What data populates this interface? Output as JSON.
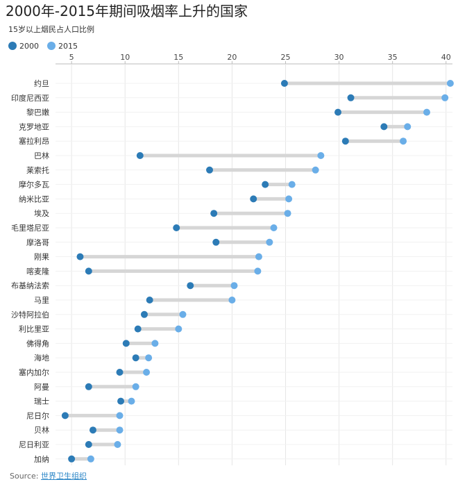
{
  "chart_data": {
    "type": "dumbbell",
    "title": "2000年-2015年期间吸烟率上升的国家",
    "subtitle": "15岁以上烟民占人口比例",
    "xlim": [
      3.5,
      40.6
    ],
    "x_ticks": [
      5,
      10,
      15,
      20,
      25,
      30,
      35,
      40
    ],
    "grid": true,
    "legend_position": "top-left",
    "series": [
      {
        "name": "2000",
        "color": "#2c7bb6"
      },
      {
        "name": "2015",
        "color": "#6aaee8"
      }
    ],
    "categories": [
      "约旦",
      "印度尼西亚",
      "黎巴嫩",
      "克罗地亚",
      "塞拉利昂",
      "巴林",
      "莱索托",
      "摩尔多瓦",
      "纳米比亚",
      "埃及",
      "毛里塔尼亚",
      "摩洛哥",
      "刚果",
      "喀麦隆",
      "布基纳法索",
      "马里",
      "沙特阿拉伯",
      "利比里亚",
      "佛得角",
      "海地",
      "塞内加尔",
      "阿曼",
      "瑞士",
      "尼日尔",
      "贝林",
      "尼日利亚",
      "加纳"
    ],
    "values_2000": [
      24.9,
      31.1,
      29.9,
      34.2,
      30.6,
      11.4,
      17.9,
      23.1,
      22.0,
      18.3,
      14.8,
      18.5,
      5.8,
      6.6,
      16.1,
      12.3,
      11.8,
      11.2,
      10.1,
      11.0,
      9.5,
      6.6,
      9.6,
      4.4,
      7.0,
      6.6,
      5.0
    ],
    "values_2015": [
      40.4,
      39.9,
      38.2,
      36.4,
      36.0,
      28.3,
      27.8,
      25.6,
      25.3,
      25.2,
      23.9,
      23.5,
      22.5,
      22.4,
      20.2,
      20.0,
      15.4,
      15.0,
      12.8,
      12.2,
      12.0,
      11.0,
      10.6,
      9.5,
      9.5,
      9.3,
      6.8
    ]
  },
  "legend": {
    "label_2000": "2000",
    "label_2015": "2015"
  },
  "source": {
    "label": "Source:",
    "link_text": "世界卫生组织"
  }
}
